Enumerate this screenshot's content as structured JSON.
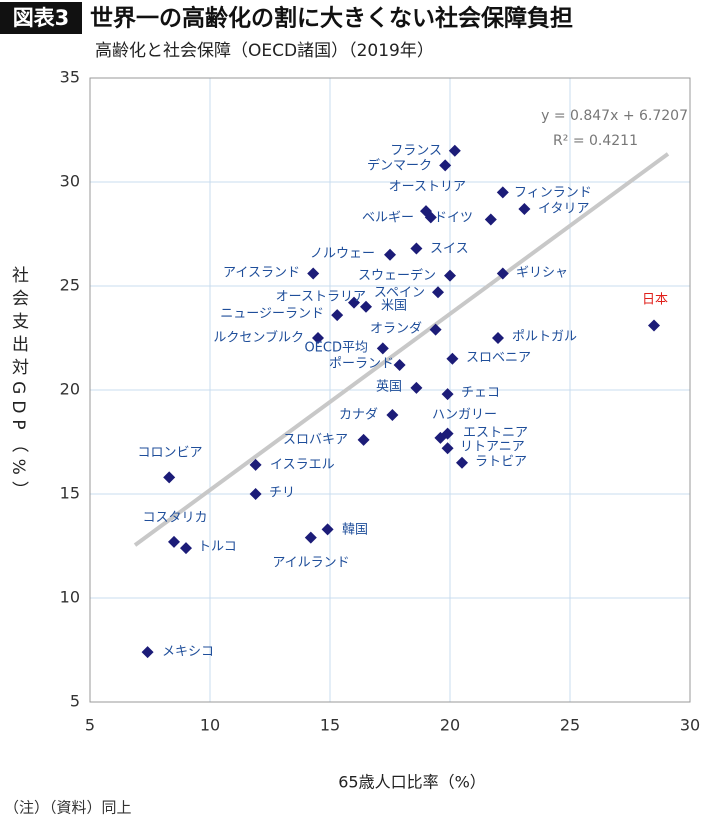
{
  "chart_data": {
    "type": "scatter",
    "badge": "図表3",
    "title": "世界一の高齢化の割に大きくない社会保障負担",
    "subtitle": "高齢化と社会保障（OECD諸国）（2019年）",
    "x_label": "65歳人口比率（%）",
    "y_label": "社会支出対GDP（%）",
    "note": "（注）（資料）同上",
    "xlim": [
      5,
      30
    ],
    "xticks": [
      5,
      10,
      15,
      20,
      25,
      30
    ],
    "ylim": [
      5,
      35
    ],
    "yticks": [
      5,
      10,
      15,
      20,
      25,
      30,
      35
    ],
    "grid": true,
    "color": "#1c1c78",
    "label_color": "#1f4e9a",
    "highlight_color": "#e0201b",
    "highlight": [
      "日本"
    ],
    "trendline": {
      "equation": "y = 0.847x + 6.7207",
      "r2": "R² = 0.4211",
      "slope": 0.847,
      "intercept": 6.7207,
      "color": "#c8c8c8"
    },
    "labels": [
      "フランス",
      "デンマーク",
      "フィンランド",
      "イタリア",
      "ベルギー",
      "ドイツ",
      "オーストリア",
      "ノルウェー",
      "スイス",
      "アイスランド",
      "スウェーデン",
      "ギリシャ",
      "スペイン",
      "オーストラリア",
      "米国",
      "ニュージーランド",
      "日本",
      "オランダ",
      "ルクセンブルク",
      "ポルトガル",
      "OECD平均",
      "スロベニア",
      "ポーランド",
      "英国",
      "チェコ",
      "カナダ",
      "ハンガリー",
      "エストニア",
      "リトアニア",
      "ラトビア",
      "スロバキア",
      "コロンビア",
      "イスラエル",
      "チリ",
      "コスタリカ",
      "トルコ",
      "韓国",
      "アイルランド",
      "メキシコ"
    ],
    "x": [
      20.2,
      19.8,
      22.2,
      23.1,
      19.0,
      19.2,
      21.7,
      17.5,
      18.6,
      14.3,
      20.0,
      22.2,
      19.5,
      16.0,
      16.5,
      15.3,
      28.5,
      19.4,
      14.5,
      22.0,
      17.2,
      20.1,
      17.9,
      18.6,
      19.9,
      17.6,
      19.9,
      19.9,
      19.6,
      20.5,
      16.4,
      8.3,
      11.9,
      11.9,
      8.5,
      9.0,
      14.9,
      14.2,
      7.4
    ],
    "y": [
      31.5,
      30.8,
      29.5,
      28.7,
      28.6,
      28.3,
      28.2,
      26.5,
      26.8,
      25.6,
      25.5,
      25.6,
      24.7,
      24.2,
      24.0,
      23.6,
      23.1,
      22.9,
      22.5,
      22.5,
      22.0,
      21.5,
      21.2,
      20.1,
      19.8,
      18.8,
      17.2,
      17.9,
      17.7,
      16.5,
      17.6,
      15.8,
      16.4,
      15.0,
      12.7,
      12.4,
      13.3,
      12.9,
      7.4
    ]
  }
}
